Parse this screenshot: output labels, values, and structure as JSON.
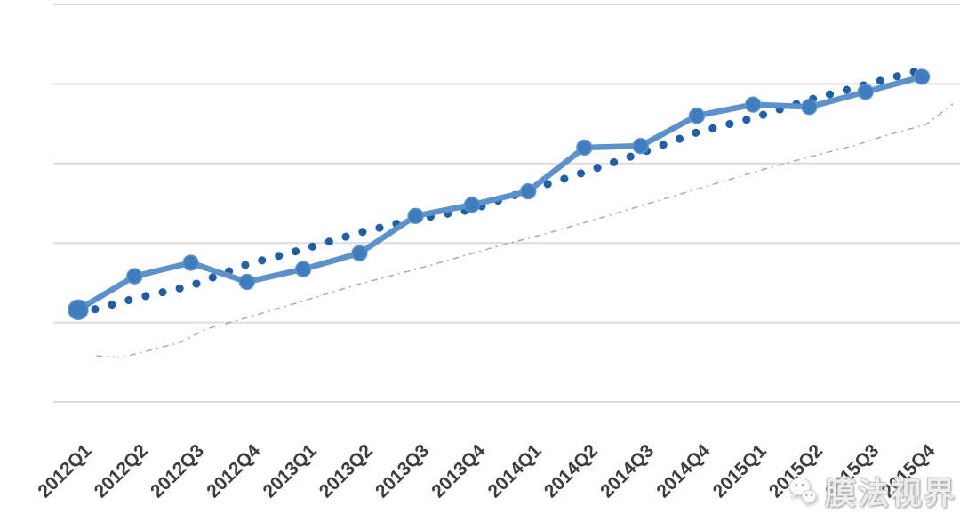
{
  "watermark": {
    "text": "膜法视界",
    "icon": "wechat-bubbles-icon"
  },
  "chart_data": {
    "type": "line",
    "title": "",
    "xlabel": "",
    "ylabel": "",
    "categories": [
      "2012Q1",
      "2012Q2",
      "2012Q3",
      "2012Q4",
      "2013Q1",
      "2013Q2",
      "2013Q3",
      "2013Q4",
      "2014Q1",
      "2014Q2",
      "2014Q3",
      "2014Q4",
      "2015Q1",
      "2015Q2",
      "2015Q3",
      "2015Q4"
    ],
    "series": [
      {
        "name": "quarterly-values",
        "style": "solid_line_round_markers",
        "color": "#5b92cb",
        "marker_color": "#3f7dbf",
        "values": [
          1.16,
          1.58,
          1.75,
          1.51,
          1.67,
          1.87,
          2.34,
          2.48,
          2.65,
          3.2,
          3.22,
          3.6,
          3.74,
          3.71,
          3.9,
          4.09
        ]
      },
      {
        "name": "dotted-trendline",
        "style": "round_dotted",
        "color": "#1e5fa8",
        "values": [
          1.11,
          1.3,
          1.46,
          1.73,
          1.92,
          2.13,
          2.3,
          2.42,
          2.66,
          2.89,
          3.13,
          3.39,
          3.57,
          3.8,
          3.99,
          4.18
        ]
      },
      {
        "name": "thin-dashed-reference-line",
        "style": "thin_gray_dashed",
        "color": "#9b9b9b",
        "points": [
          [
            0.32,
            0.58
          ],
          [
            0.77,
            0.56
          ],
          [
            1.22,
            0.64
          ],
          [
            1.82,
            0.75
          ],
          [
            2.29,
            0.92
          ],
          [
            3.0,
            1.06
          ],
          [
            4.0,
            1.27
          ],
          [
            4.98,
            1.48
          ],
          [
            5.85,
            1.64
          ],
          [
            6.62,
            1.79
          ],
          [
            7.41,
            1.95
          ],
          [
            8.38,
            2.13
          ],
          [
            9.36,
            2.33
          ],
          [
            10.3,
            2.53
          ],
          [
            11.25,
            2.73
          ],
          [
            12.2,
            2.93
          ],
          [
            13.15,
            3.11
          ],
          [
            13.83,
            3.23
          ],
          [
            14.3,
            3.34
          ],
          [
            15.08,
            3.49
          ],
          [
            15.55,
            3.75
          ]
        ]
      }
    ],
    "ylim": [
      0,
      5
    ],
    "y_gridlines": [
      0,
      1,
      2,
      3,
      4,
      5
    ],
    "y_tick_labels_visible": false,
    "y_units": "gridline-intervals (no y-axis labels visible in image)",
    "x_tick_label_rotation_deg": 45,
    "grid": "horizontal-only",
    "legend": "none",
    "gridline_color": "#dcdcdc",
    "x_label_color": "#3d3d3d"
  }
}
